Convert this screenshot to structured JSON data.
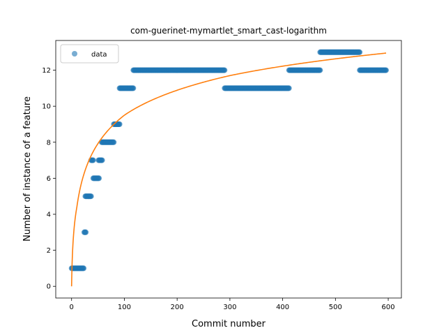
{
  "chart_data": {
    "type": "scatter",
    "title": "com-guerinet-mymartlet_smart_cast-logarithm",
    "xlabel": "Commit number",
    "ylabel": "Number of instance of a feature",
    "xlim": [
      -30,
      625
    ],
    "ylim": [
      -0.65,
      13.65
    ],
    "xticks": [
      0,
      100,
      200,
      300,
      400,
      500,
      600
    ],
    "yticks": [
      0,
      2,
      4,
      6,
      8,
      10,
      12
    ],
    "grid": false,
    "legend": {
      "placement": "top-left",
      "entries": [
        "data"
      ]
    },
    "colors": {
      "data": "#1f77b4",
      "fit": "#ff7f0e"
    },
    "series": [
      {
        "name": "data",
        "kind": "points",
        "segments": [
          {
            "x_start": 0,
            "x_end": 23,
            "y": 1
          },
          {
            "x_start": 24,
            "x_end": 27,
            "y": 3
          },
          {
            "x_start": 26,
            "x_end": 37,
            "y": 5
          },
          {
            "x_start": 37,
            "x_end": 41,
            "y": 7
          },
          {
            "x_start": 41,
            "x_end": 52,
            "y": 6
          },
          {
            "x_start": 51,
            "x_end": 58,
            "y": 7
          },
          {
            "x_start": 57,
            "x_end": 80,
            "y": 8
          },
          {
            "x_start": 80,
            "x_end": 91,
            "y": 9
          },
          {
            "x_start": 91,
            "x_end": 117,
            "y": 11
          },
          {
            "x_start": 117,
            "x_end": 290,
            "y": 12
          },
          {
            "x_start": 290,
            "x_end": 412,
            "y": 11
          },
          {
            "x_start": 412,
            "x_end": 471,
            "y": 12
          },
          {
            "x_start": 471,
            "x_end": 546,
            "y": 13
          },
          {
            "x_start": 546,
            "x_end": 596,
            "y": 12
          }
        ]
      },
      {
        "kind": "line",
        "model": "logarithmic",
        "x_range": [
          0,
          596
        ],
        "y_at_x": [
          [
            0,
            0
          ],
          [
            10,
            4.4
          ],
          [
            100,
            9.5
          ],
          [
            300,
            11.7
          ],
          [
            596,
            12.95
          ]
        ]
      }
    ]
  }
}
